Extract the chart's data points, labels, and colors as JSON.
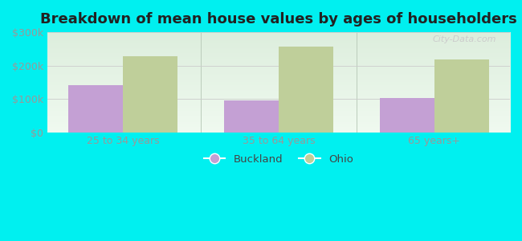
{
  "title": "Breakdown of mean house values by ages of householders",
  "categories": [
    "25 to 34 years",
    "35 to 64 years",
    "65 years+"
  ],
  "buckland_values": [
    140000,
    95000,
    103000
  ],
  "ohio_values": [
    228000,
    258000,
    218000
  ],
  "ylim": [
    0,
    300000
  ],
  "yticks": [
    0,
    100000,
    200000,
    300000
  ],
  "ytick_labels": [
    "$0",
    "$100k",
    "$200k",
    "$300k"
  ],
  "buckland_color": "#c4a0d4",
  "ohio_color": "#bfcf9a",
  "background_color": "#00f0f0",
  "plot_bg_top": "#ddeedd",
  "plot_bg_bottom": "#f0faf0",
  "title_fontsize": 13,
  "tick_fontsize": 9,
  "legend_labels": [
    "Buckland",
    "Ohio"
  ],
  "bar_width": 0.35,
  "watermark": "City-Data.com"
}
